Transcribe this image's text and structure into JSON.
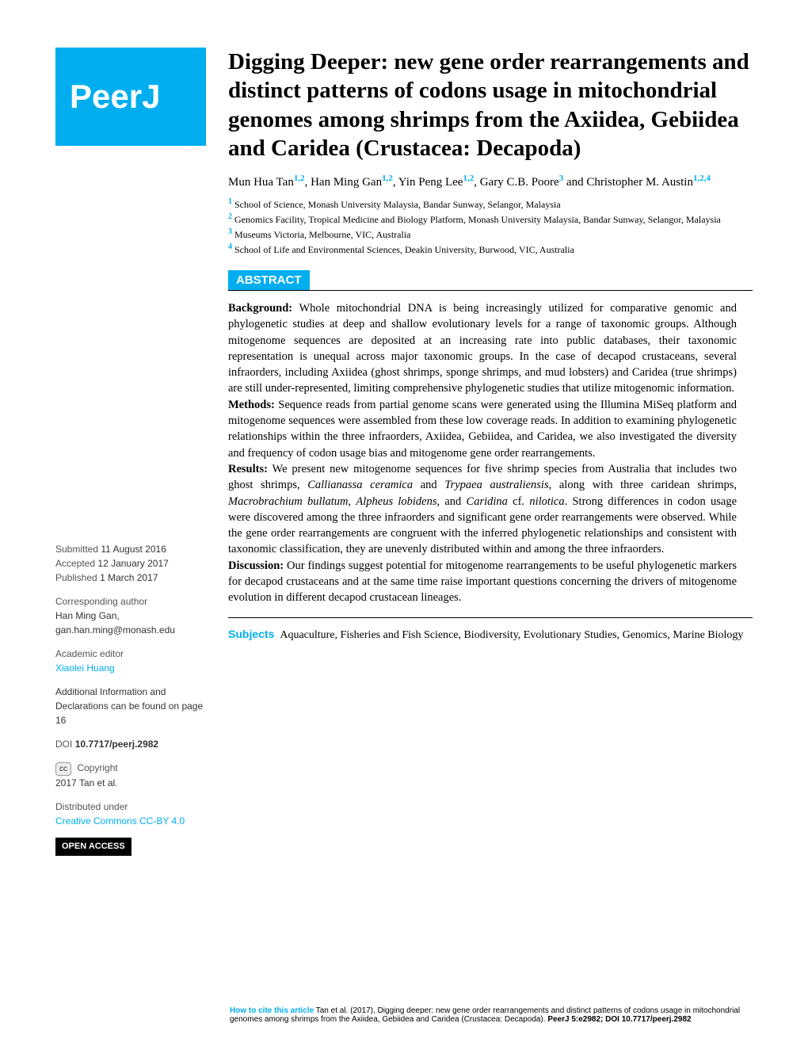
{
  "logo": "PeerJ",
  "title": "Digging Deeper: new gene order rearrangements and distinct patterns of codons usage in mitochondrial genomes among shrimps from the Axiidea, Gebiidea and Caridea (Crustacea: Decapoda)",
  "authors": [
    {
      "name": "Mun Hua Tan",
      "aff": "1,2"
    },
    {
      "name": "Han Ming Gan",
      "aff": "1,2"
    },
    {
      "name": "Yin Peng Lee",
      "aff": "1,2"
    },
    {
      "name": "Gary C.B. Poore",
      "aff": "3"
    },
    {
      "name": "Christopher M. Austin",
      "aff": "1,2,4"
    }
  ],
  "affiliations": [
    {
      "num": "1",
      "text": "School of Science, Monash University Malaysia, Bandar Sunway, Selangor, Malaysia"
    },
    {
      "num": "2",
      "text": "Genomics Facility, Tropical Medicine and Biology Platform, Monash University Malaysia, Bandar Sunway, Selangor, Malaysia"
    },
    {
      "num": "3",
      "text": "Museums Victoria, Melbourne, VIC, Australia"
    },
    {
      "num": "4",
      "text": "School of Life and Environmental Sciences, Deakin University, Burwood, VIC, Australia"
    }
  ],
  "abstract_label": "ABSTRACT",
  "abstract": {
    "background_label": "Background:",
    "background": " Whole mitochondrial DNA is being increasingly utilized for comparative genomic and phylogenetic studies at deep and shallow evolutionary levels for a range of taxonomic groups. Although mitogenome sequences are deposited at an increasing rate into public databases, their taxonomic representation is unequal across major taxonomic groups. In the case of decapod crustaceans, several infraorders, including Axiidea (ghost shrimps, sponge shrimps, and mud lobsters) and Caridea (true shrimps) are still under-represented, limiting comprehensive phylogenetic studies that utilize mitogenomic information.",
    "methods_label": "Methods:",
    "methods": " Sequence reads from partial genome scans were generated using the Illumina MiSeq platform and mitogenome sequences were assembled from these low coverage reads. In addition to examining phylogenetic relationships within the three infraorders, Axiidea, Gebiidea, and Caridea, we also investigated the diversity and frequency of codon usage bias and mitogenome gene order rearrangements.",
    "results_label": "Results:",
    "results_pre": " We present new mitogenome sequences for five shrimp species from Australia that includes two ghost shrimps, ",
    "species1": "Callianassa ceramica",
    "results_mid1": " and ",
    "species2": "Trypaea australiensis",
    "results_mid2": ", along with three caridean shrimps, ",
    "species3": "Macrobrachium bullatum",
    "results_mid3": ", ",
    "species4": "Alpheus lobidens,",
    "results_mid4": " and ",
    "species5": "Caridina",
    "results_mid5": " cf. ",
    "species6": "nilotica",
    "results_post": ". Strong differences in codon usage were discovered among the three infraorders and significant gene order rearrangements were observed. While the gene order rearrangements are congruent with the inferred phylogenetic relationships and consistent with taxonomic classification, they are unevenly distributed within and among the three infraorders.",
    "discussion_label": "Discussion:",
    "discussion": " Our findings suggest potential for mitogenome rearrangements to be useful phylogenetic markers for decapod crustaceans and at the same time raise important questions concerning the drivers of mitogenome evolution in different decapod crustacean lineages."
  },
  "subjects_label": "Subjects",
  "subjects": "Aquaculture, Fisheries and Fish Science, Biodiversity, Evolutionary Studies, Genomics, Marine Biology",
  "sidebar": {
    "submitted_label": "Submitted",
    "submitted": "11 August 2016",
    "accepted_label": "Accepted",
    "accepted": "12 January 2017",
    "published_label": "Published",
    "published": "1 March 2017",
    "corr_label": "Corresponding author",
    "corr_name": "Han Ming Gan,",
    "corr_email": "gan.han.ming@monash.edu",
    "editor_label": "Academic editor",
    "editor": "Xiaolei Huang",
    "addl_info": "Additional Information and Declarations can be found on page 16",
    "doi_label": "DOI",
    "doi": "10.7717/peerj.2982",
    "copyright_label": "Copyright",
    "copyright": "2017 Tan et al.",
    "dist_label": "Distributed under",
    "dist": "Creative Commons CC-BY 4.0",
    "open_access": "OPEN ACCESS"
  },
  "citation": {
    "label": "How to cite this article",
    "text": "Tan et al. (2017), Digging deeper: new gene order rearrangements and distinct patterns of codons usage in mitochondrial genomes among shrimps from the Axiidea, Gebiidea and Caridea (Crustacea: Decapoda). ",
    "journal": "PeerJ 5:e2982; DOI 10.7717/peerj.2982"
  },
  "colors": {
    "brand": "#00aeef",
    "text": "#000000",
    "bg": "#ffffff"
  }
}
